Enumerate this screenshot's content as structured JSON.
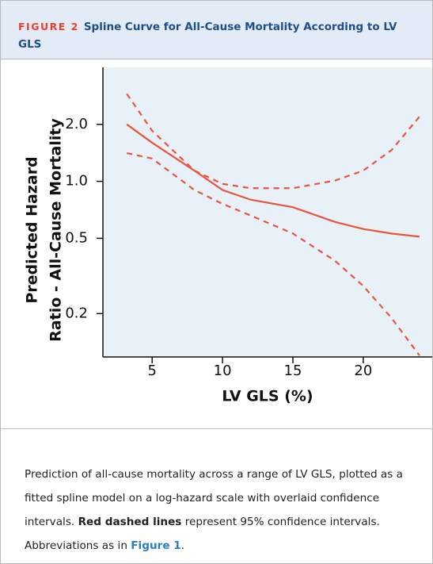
{
  "header": {
    "label": "FIGURE 2",
    "title": "Spline Curve for All-Cause Mortality According to LV GLS"
  },
  "chart_data": {
    "type": "line",
    "ylabel": [
      "Predicted Hazard",
      "Ratio - All-Cause Mortality"
    ],
    "xlabel": "LV GLS (%)",
    "x": [
      3.2,
      5,
      8,
      10,
      12,
      15,
      18,
      20,
      22,
      24
    ],
    "series": [
      {
        "color": "#e8553e",
        "dash": false,
        "values": [
          2.0,
          1.6,
          1.14,
          0.9,
          0.8,
          0.73,
          0.61,
          0.56,
          0.53,
          0.51
        ]
      },
      {
        "color": "#e8553e",
        "dash": true,
        "values": [
          2.9,
          1.85,
          1.14,
          0.97,
          0.92,
          0.92,
          1.01,
          1.14,
          1.46,
          2.2
        ]
      },
      {
        "color": "#e8553e",
        "dash": true,
        "values": [
          1.41,
          1.32,
          0.9,
          0.76,
          0.66,
          0.53,
          0.38,
          0.28,
          0.19,
          0.12
        ]
      }
    ],
    "xlim": [
      1.5,
      24.9
    ],
    "ylim": [
      0.118,
      4
    ],
    "ylog": true,
    "xticks": [
      5,
      10,
      15,
      20
    ],
    "yticks": [
      0.2,
      0.5,
      {
        "value": 1,
        "label": "1.0"
      },
      {
        "value": 2,
        "label": "2.0"
      }
    ],
    "plot_background": "#e8f0f8"
  },
  "caption": {
    "parts": [
      "Prediction of all-cause mortality across a range of LV GLS, plotted as a fitted spline model on a log-hazard scale with overlaid confidence intervals. ",
      "Red dashed lines",
      " represent 95% confidence intervals. Abbreviations as in ",
      "Figure 1",
      "."
    ]
  }
}
